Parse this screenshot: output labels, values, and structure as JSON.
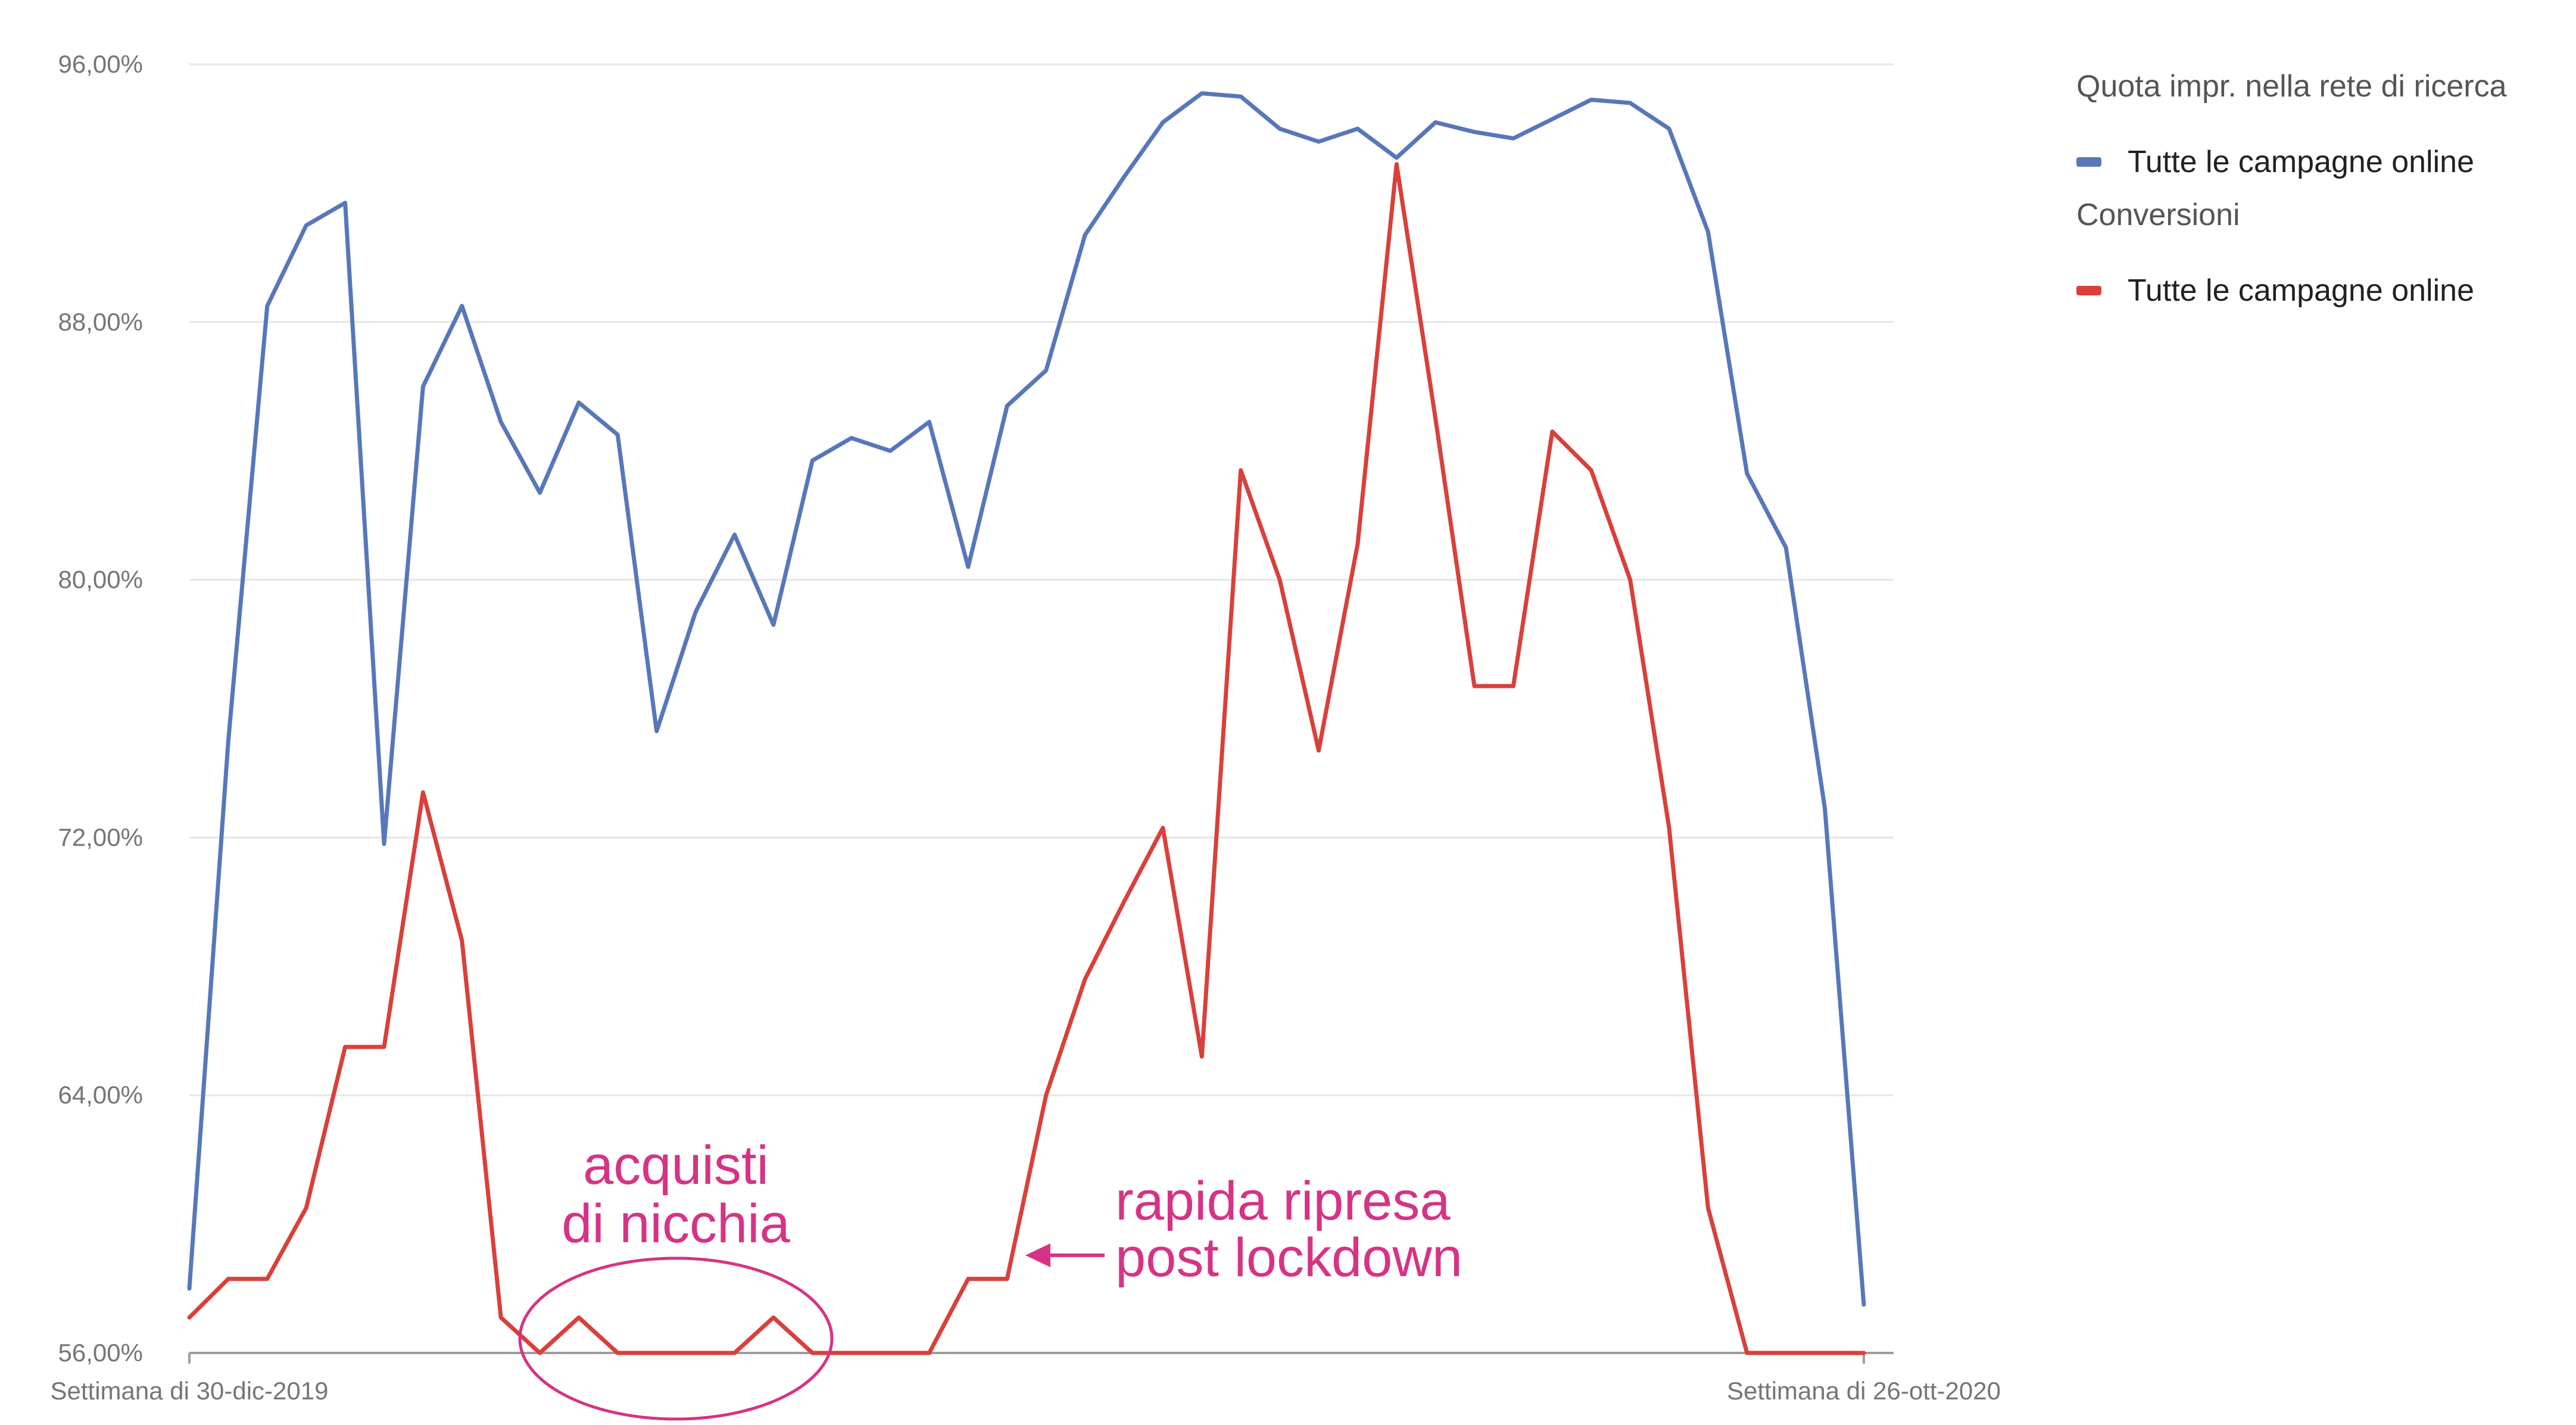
{
  "chart_data": {
    "type": "line",
    "x": [
      "Settimana di 30-dic-2019",
      "",
      "",
      "",
      "",
      "",
      "",
      "",
      "",
      "",
      "",
      "",
      "",
      "",
      "",
      "",
      "",
      "",
      "",
      "",
      "",
      "",
      "",
      "",
      "",
      "",
      "",
      "",
      "",
      "",
      "",
      "",
      "",
      "",
      "",
      "",
      "",
      "",
      "",
      "",
      "",
      "",
      "",
      "Settimana di 26-ott-2020"
    ],
    "x_tick_labels": [
      "Settimana di 30-dic-2019",
      "Settimana di 26-ott-2020"
    ],
    "ylim": [
      56,
      96
    ],
    "y_ticks": [
      56,
      64,
      72,
      80,
      88,
      96
    ],
    "y_tick_labels": [
      "56,00%",
      "64,00%",
      "72,00%",
      "80,00%",
      "88,00%",
      "96,00%"
    ],
    "grid": true,
    "legend_position": "top-right",
    "series": [
      {
        "name": "Tutte le campagne online",
        "group": "Quota impr. nella rete di ricerca",
        "color": "#5677ba",
        "values": [
          58.0,
          75.0,
          88.5,
          91.0,
          91.7,
          71.8,
          86.0,
          88.5,
          84.9,
          82.7,
          85.5,
          84.5,
          75.3,
          79.0,
          81.4,
          78.6,
          83.7,
          84.4,
          84.0,
          84.9,
          80.4,
          85.4,
          86.5,
          90.7,
          92.5,
          94.2,
          95.1,
          95.0,
          94.0,
          93.6,
          94.0,
          93.1,
          94.2,
          93.9,
          93.7,
          94.3,
          94.9,
          94.8,
          94.0,
          90.8,
          83.3,
          81.0,
          72.9,
          57.5
        ]
      },
      {
        "name": "Tutte le campagne online",
        "group": "Conversioni",
        "color": "#d9403a",
        "values": [
          57.1,
          58.3,
          58.3,
          60.5,
          65.5,
          65.5,
          73.4,
          68.8,
          57.1,
          56.0,
          57.1,
          56.0,
          56.0,
          56.0,
          56.0,
          57.1,
          56.0,
          56.0,
          56.0,
          56.0,
          58.3,
          58.3,
          64.0,
          67.6,
          70.0,
          72.3,
          65.2,
          83.4,
          80.0,
          74.7,
          81.1,
          92.9,
          85.0,
          76.7,
          76.7,
          84.6,
          83.4,
          80.0,
          72.3,
          60.5,
          56.0,
          56.0,
          56.0,
          56.0
        ]
      }
    ],
    "annotations": [
      {
        "lines": [
          "acquisti",
          "di nicchia"
        ],
        "color": "#d63384",
        "shape": "ellipse"
      },
      {
        "lines": [
          "rapida ripresa",
          "post lockdown"
        ],
        "color": "#d63384",
        "shape": "arrow"
      }
    ]
  },
  "legend": {
    "groups": [
      {
        "header": "Quota impr. nella rete di ricerca",
        "item": "Tutte le campagne online",
        "color": "#5677ba"
      },
      {
        "header": "Conversioni",
        "item": "Tutte le campagne online",
        "color": "#d9403a"
      }
    ]
  }
}
